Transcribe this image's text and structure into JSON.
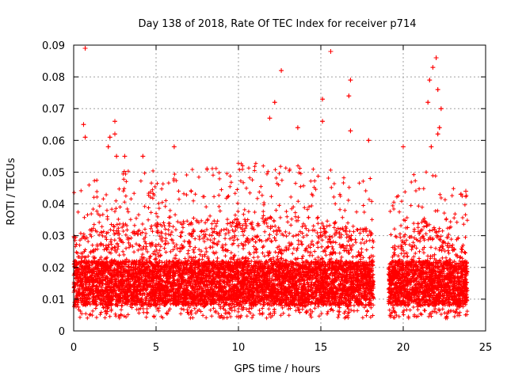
{
  "chart_data": {
    "type": "scatter",
    "title": "Day 138 of 2018, Rate Of TEC Index for receiver p714",
    "xlabel": "GPS time / hours",
    "ylabel": "ROTI / TECUs",
    "xlim": [
      0,
      25
    ],
    "ylim": [
      0,
      0.09
    ],
    "xticks": [
      0,
      5,
      10,
      15,
      20,
      25
    ],
    "yticks": [
      0,
      0.01,
      0.02,
      0.03,
      0.04,
      0.05,
      0.06,
      0.07,
      0.08,
      0.09
    ],
    "xtick_labels": [
      "0",
      "5",
      "10",
      "15",
      "20",
      "25"
    ],
    "ytick_labels": [
      "0",
      "0.01",
      "0.02",
      "0.03",
      "0.04",
      "0.05",
      "0.06",
      "0.07",
      "0.08",
      "0.09"
    ],
    "grid": true,
    "marker": "+",
    "color": "#ff0000",
    "data_gaps_hours": [
      [
        18.2,
        19.1
      ],
      [
        23.9,
        25
      ]
    ],
    "bulk_envelope": {
      "typical_min": 0.004,
      "dense_band": [
        0.008,
        0.022
      ],
      "typical_max": [
        [
          0,
          0.038
        ],
        [
          2,
          0.042
        ],
        [
          6,
          0.043
        ],
        [
          10,
          0.045
        ],
        [
          14,
          0.045
        ],
        [
          18,
          0.04
        ],
        [
          19.2,
          0.032
        ],
        [
          21,
          0.045
        ],
        [
          23.8,
          0.035
        ]
      ]
    },
    "series": [
      {
        "name": "p714 ROTI",
        "highlighted_points": [
          {
            "x": 0.7,
            "y": 0.089
          },
          {
            "x": 0.6,
            "y": 0.065
          },
          {
            "x": 0.7,
            "y": 0.061
          },
          {
            "x": 2.2,
            "y": 0.061
          },
          {
            "x": 2.5,
            "y": 0.066
          },
          {
            "x": 2.5,
            "y": 0.062
          },
          {
            "x": 2.1,
            "y": 0.058
          },
          {
            "x": 2.6,
            "y": 0.055
          },
          {
            "x": 3.1,
            "y": 0.055
          },
          {
            "x": 4.2,
            "y": 0.055
          },
          {
            "x": 6.1,
            "y": 0.058
          },
          {
            "x": 11.9,
            "y": 0.067
          },
          {
            "x": 12.2,
            "y": 0.072
          },
          {
            "x": 12.6,
            "y": 0.082
          },
          {
            "x": 13.6,
            "y": 0.064
          },
          {
            "x": 15.1,
            "y": 0.073
          },
          {
            "x": 15.1,
            "y": 0.066
          },
          {
            "x": 15.6,
            "y": 0.088
          },
          {
            "x": 16.8,
            "y": 0.079
          },
          {
            "x": 16.7,
            "y": 0.074
          },
          {
            "x": 16.8,
            "y": 0.063
          },
          {
            "x": 17.9,
            "y": 0.06
          },
          {
            "x": 20.0,
            "y": 0.058
          },
          {
            "x": 21.6,
            "y": 0.079
          },
          {
            "x": 21.8,
            "y": 0.083
          },
          {
            "x": 22.0,
            "y": 0.086
          },
          {
            "x": 22.1,
            "y": 0.076
          },
          {
            "x": 22.3,
            "y": 0.07
          },
          {
            "x": 21.5,
            "y": 0.072
          },
          {
            "x": 22.2,
            "y": 0.064
          },
          {
            "x": 21.7,
            "y": 0.058
          },
          {
            "x": 22.1,
            "y": 0.062
          },
          {
            "x": 23.5,
            "y": 0.043
          },
          {
            "x": 23.8,
            "y": 0.044
          }
        ]
      }
    ]
  }
}
